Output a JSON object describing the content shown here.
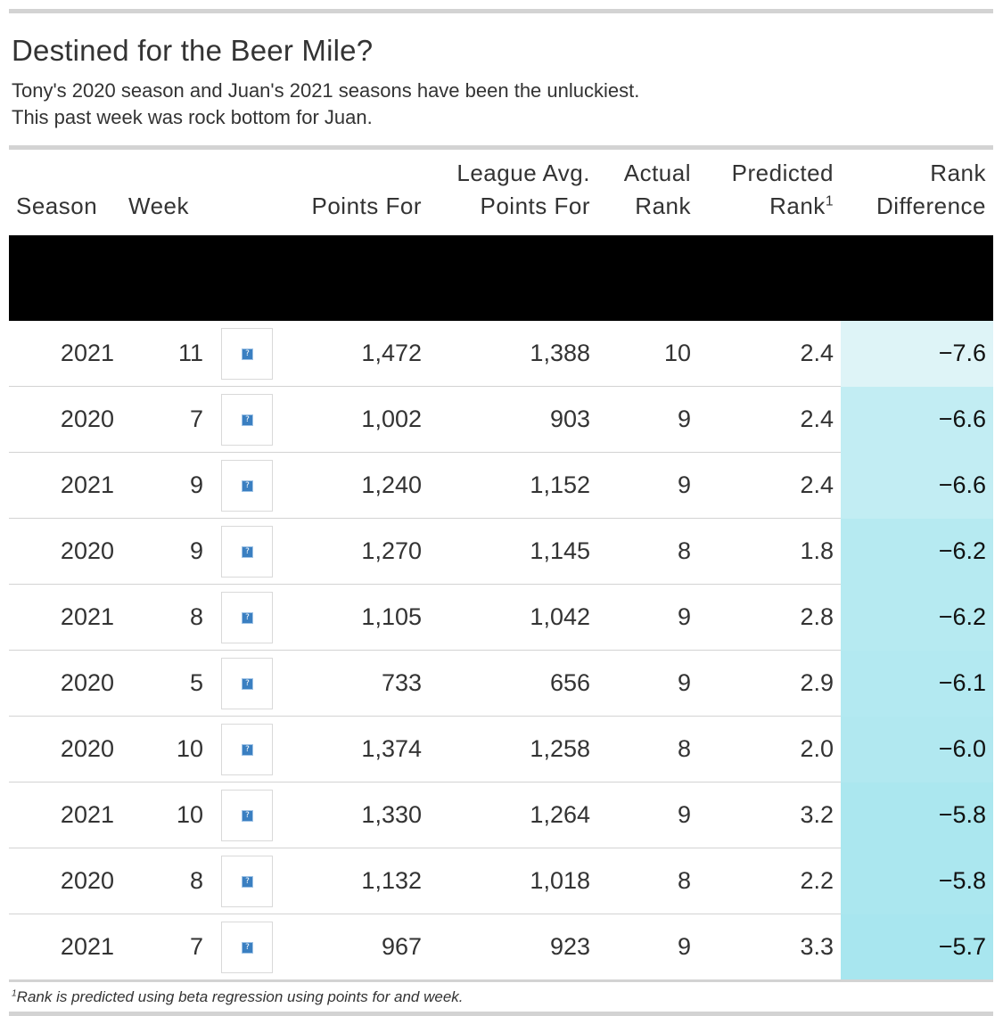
{
  "title": "Destined for the Beer Mile?",
  "subtitle_line1": "Tony's 2020 season and Juan's 2021 seasons have been the unluckiest.",
  "subtitle_line2": "This past week was rock bottom for Juan.",
  "columns": {
    "season": "Season",
    "week": "Week",
    "image": "",
    "points_for": "Points For",
    "league_avg_line1": "League Avg.",
    "league_avg_line2": "Points For",
    "actual_line1": "Actual",
    "actual_line2": "Rank",
    "predicted_line1": "Predicted",
    "predicted_line2": "Rank",
    "predicted_marker": "1",
    "diff_line1": "Rank",
    "diff_line2": "Difference"
  },
  "footnote_marker": "1",
  "footnote": "Rank is predicted using beta regression using points for and week.",
  "image_placeholder_icon": "broken-image-icon",
  "diff_color_scale": {
    "most_negative": "#def4f7",
    "least_negative": "#a8e6ef"
  },
  "chart_data": {
    "type": "table",
    "title": "Destined for the Beer Mile?",
    "rows": [
      {
        "season": "2021",
        "week": "11",
        "points_for": "1,472",
        "league_avg": "1,388",
        "actual_rank": "10",
        "predicted_rank": "2.4",
        "rank_difference": "−7.6",
        "diff_value": -7.6
      },
      {
        "season": "2020",
        "week": "7",
        "points_for": "1,002",
        "league_avg": "903",
        "actual_rank": "9",
        "predicted_rank": "2.4",
        "rank_difference": "−6.6",
        "diff_value": -6.6
      },
      {
        "season": "2021",
        "week": "9",
        "points_for": "1,240",
        "league_avg": "1,152",
        "actual_rank": "9",
        "predicted_rank": "2.4",
        "rank_difference": "−6.6",
        "diff_value": -6.6
      },
      {
        "season": "2020",
        "week": "9",
        "points_for": "1,270",
        "league_avg": "1,145",
        "actual_rank": "8",
        "predicted_rank": "1.8",
        "rank_difference": "−6.2",
        "diff_value": -6.2
      },
      {
        "season": "2021",
        "week": "8",
        "points_for": "1,105",
        "league_avg": "1,042",
        "actual_rank": "9",
        "predicted_rank": "2.8",
        "rank_difference": "−6.2",
        "diff_value": -6.2
      },
      {
        "season": "2020",
        "week": "5",
        "points_for": "733",
        "league_avg": "656",
        "actual_rank": "9",
        "predicted_rank": "2.9",
        "rank_difference": "−6.1",
        "diff_value": -6.1
      },
      {
        "season": "2020",
        "week": "10",
        "points_for": "1,374",
        "league_avg": "1,258",
        "actual_rank": "8",
        "predicted_rank": "2.0",
        "rank_difference": "−6.0",
        "diff_value": -6.0
      },
      {
        "season": "2021",
        "week": "10",
        "points_for": "1,330",
        "league_avg": "1,264",
        "actual_rank": "9",
        "predicted_rank": "3.2",
        "rank_difference": "−5.8",
        "diff_value": -5.8
      },
      {
        "season": "2020",
        "week": "8",
        "points_for": "1,132",
        "league_avg": "1,018",
        "actual_rank": "8",
        "predicted_rank": "2.2",
        "rank_difference": "−5.8",
        "diff_value": -5.8
      },
      {
        "season": "2021",
        "week": "7",
        "points_for": "967",
        "league_avg": "923",
        "actual_rank": "9",
        "predicted_rank": "3.3",
        "rank_difference": "−5.7",
        "diff_value": -5.7
      }
    ]
  }
}
